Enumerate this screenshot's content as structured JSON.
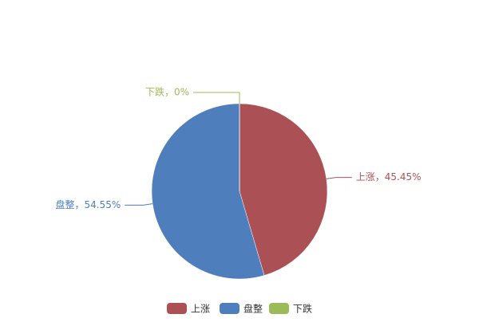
{
  "chart_data": {
    "type": "pie",
    "categories": [
      "上涨",
      "盘整",
      "下跌"
    ],
    "values": [
      45.45,
      54.55,
      0
    ],
    "value_labels": [
      "上涨，45.45%",
      "盘整，54.55%",
      "下跌，0%"
    ],
    "colors": [
      "#ab5155",
      "#4e7ebb",
      "#9bbb58"
    ],
    "legend": "bottom"
  }
}
